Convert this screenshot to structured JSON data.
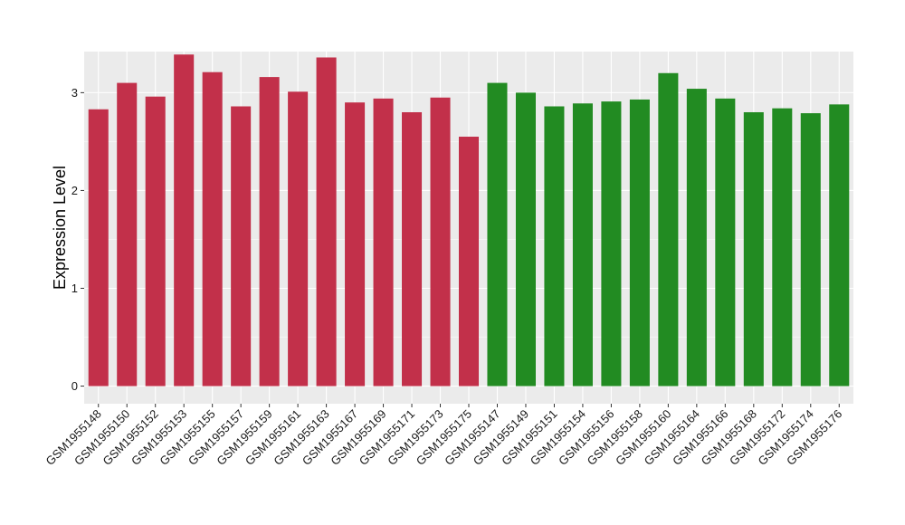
{
  "chart_data": {
    "type": "bar",
    "title": "",
    "xlabel": "",
    "ylabel": "Expression Level",
    "ylim": [
      -0.18,
      3.42
    ],
    "yticks": [
      0,
      1,
      2,
      3
    ],
    "grid": true,
    "legend": "none",
    "categories": [
      "GSM1955148",
      "GSM1955150",
      "GSM1955152",
      "GSM1955153",
      "GSM1955155",
      "GSM1955157",
      "GSM1955159",
      "GSM1955161",
      "GSM1955163",
      "GSM1955167",
      "GSM1955169",
      "GSM1955171",
      "GSM1955173",
      "GSM1955175",
      "GSM1955147",
      "GSM1955149",
      "GSM1955151",
      "GSM1955154",
      "GSM1955156",
      "GSM1955158",
      "GSM1955160",
      "GSM1955164",
      "GSM1955166",
      "GSM1955168",
      "GSM1955172",
      "GSM1955174",
      "GSM1955176"
    ],
    "values": [
      2.83,
      3.1,
      2.96,
      3.39,
      3.21,
      2.86,
      3.16,
      3.01,
      3.36,
      2.9,
      2.94,
      2.8,
      2.95,
      2.55,
      3.1,
      3.0,
      2.86,
      2.89,
      2.91,
      2.93,
      3.2,
      3.04,
      2.94,
      2.8,
      2.84,
      2.79,
      2.88
    ],
    "group_sizes": [
      14,
      13
    ],
    "colors": [
      "#c2304a",
      "#228b22"
    ]
  }
}
